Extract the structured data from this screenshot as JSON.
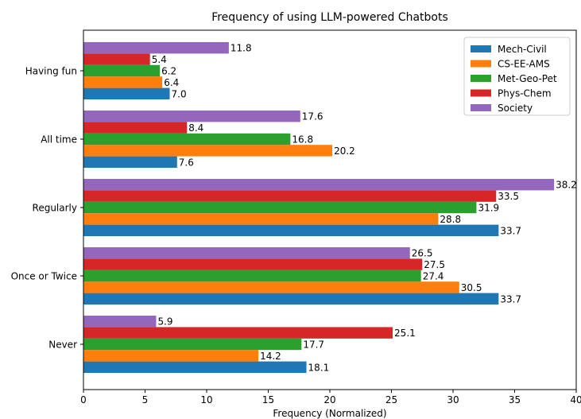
{
  "chart_data": {
    "type": "bar",
    "orientation": "horizontal",
    "title": "Frequency of using LLM-powered Chatbots",
    "xlabel": "Frequency (Normalized)",
    "ylabel": "",
    "xlim": [
      0,
      40
    ],
    "xticks": [
      0,
      5,
      10,
      15,
      20,
      25,
      30,
      35,
      40
    ],
    "grid": false,
    "legend_position": "top-right",
    "categories": [
      "Never",
      "Once or Twice",
      "Regularly",
      "All time",
      "Having fun"
    ],
    "series": [
      {
        "name": "Mech-Civil",
        "color": "#1f77b4",
        "values": [
          18.1,
          33.7,
          33.7,
          7.6,
          7.0
        ],
        "labels": [
          "18.1",
          "33.7",
          "33.7",
          "7.6",
          "7.0"
        ]
      },
      {
        "name": "CS-EE-AMS",
        "color": "#ff7f0e",
        "values": [
          14.2,
          30.5,
          28.8,
          20.2,
          6.4
        ],
        "labels": [
          "14.2",
          "30.5",
          "28.8",
          "20.2",
          "6.4"
        ]
      },
      {
        "name": "Met-Geo-Pet",
        "color": "#2ca02c",
        "values": [
          17.7,
          27.4,
          31.9,
          16.8,
          6.2
        ],
        "labels": [
          "17.7",
          "27.4",
          "31.9",
          "16.8",
          "6.2"
        ]
      },
      {
        "name": "Phys-Chem",
        "color": "#d62728",
        "values": [
          25.1,
          27.5,
          33.5,
          8.4,
          5.4
        ],
        "labels": [
          "25.1",
          "27.5",
          "33.5",
          "8.4",
          "5.4"
        ]
      },
      {
        "name": "Society",
        "color": "#9467bd",
        "values": [
          5.9,
          26.5,
          38.2,
          17.6,
          11.8
        ],
        "labels": [
          "5.9",
          "26.5",
          "38.2",
          "17.6",
          "11.8"
        ]
      }
    ]
  }
}
